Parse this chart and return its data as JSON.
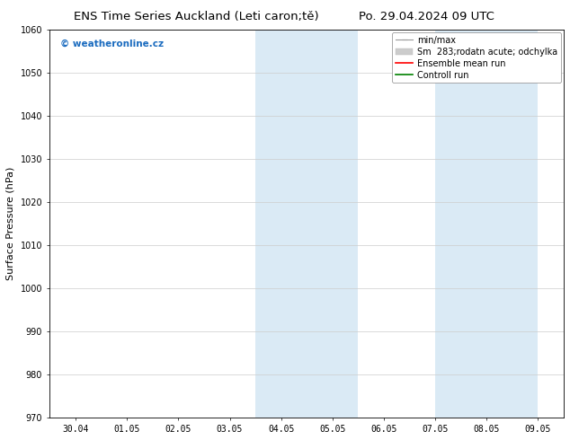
{
  "title_left": "ENS Time Series Auckland (Leti caron;tě)",
  "title_right": "Po. 29.04.2024 09 UTC",
  "ylabel": "Surface Pressure (hPa)",
  "xtick_labels": [
    "30.04",
    "01.05",
    "02.05",
    "03.05",
    "04.05",
    "05.05",
    "06.05",
    "07.05",
    "08.05",
    "09.05"
  ],
  "xtick_positions": [
    0,
    1,
    2,
    3,
    4,
    5,
    6,
    7,
    8,
    9
  ],
  "ylim": [
    970,
    1060
  ],
  "yticks": [
    970,
    980,
    990,
    1000,
    1010,
    1020,
    1030,
    1040,
    1050,
    1060
  ],
  "shaded_bands": [
    {
      "x_start": 3.5,
      "x_end": 5.5
    },
    {
      "x_start": 7.0,
      "x_end": 9.0
    }
  ],
  "shade_color": "#daeaf5",
  "watermark_text": "© weatheronline.cz",
  "watermark_color": "#1a6bbf",
  "background_color": "#ffffff",
  "grid_color": "#cccccc",
  "tick_fontsize": 7,
  "label_fontsize": 8,
  "title_fontsize": 9.5,
  "legend_fontsize": 7
}
